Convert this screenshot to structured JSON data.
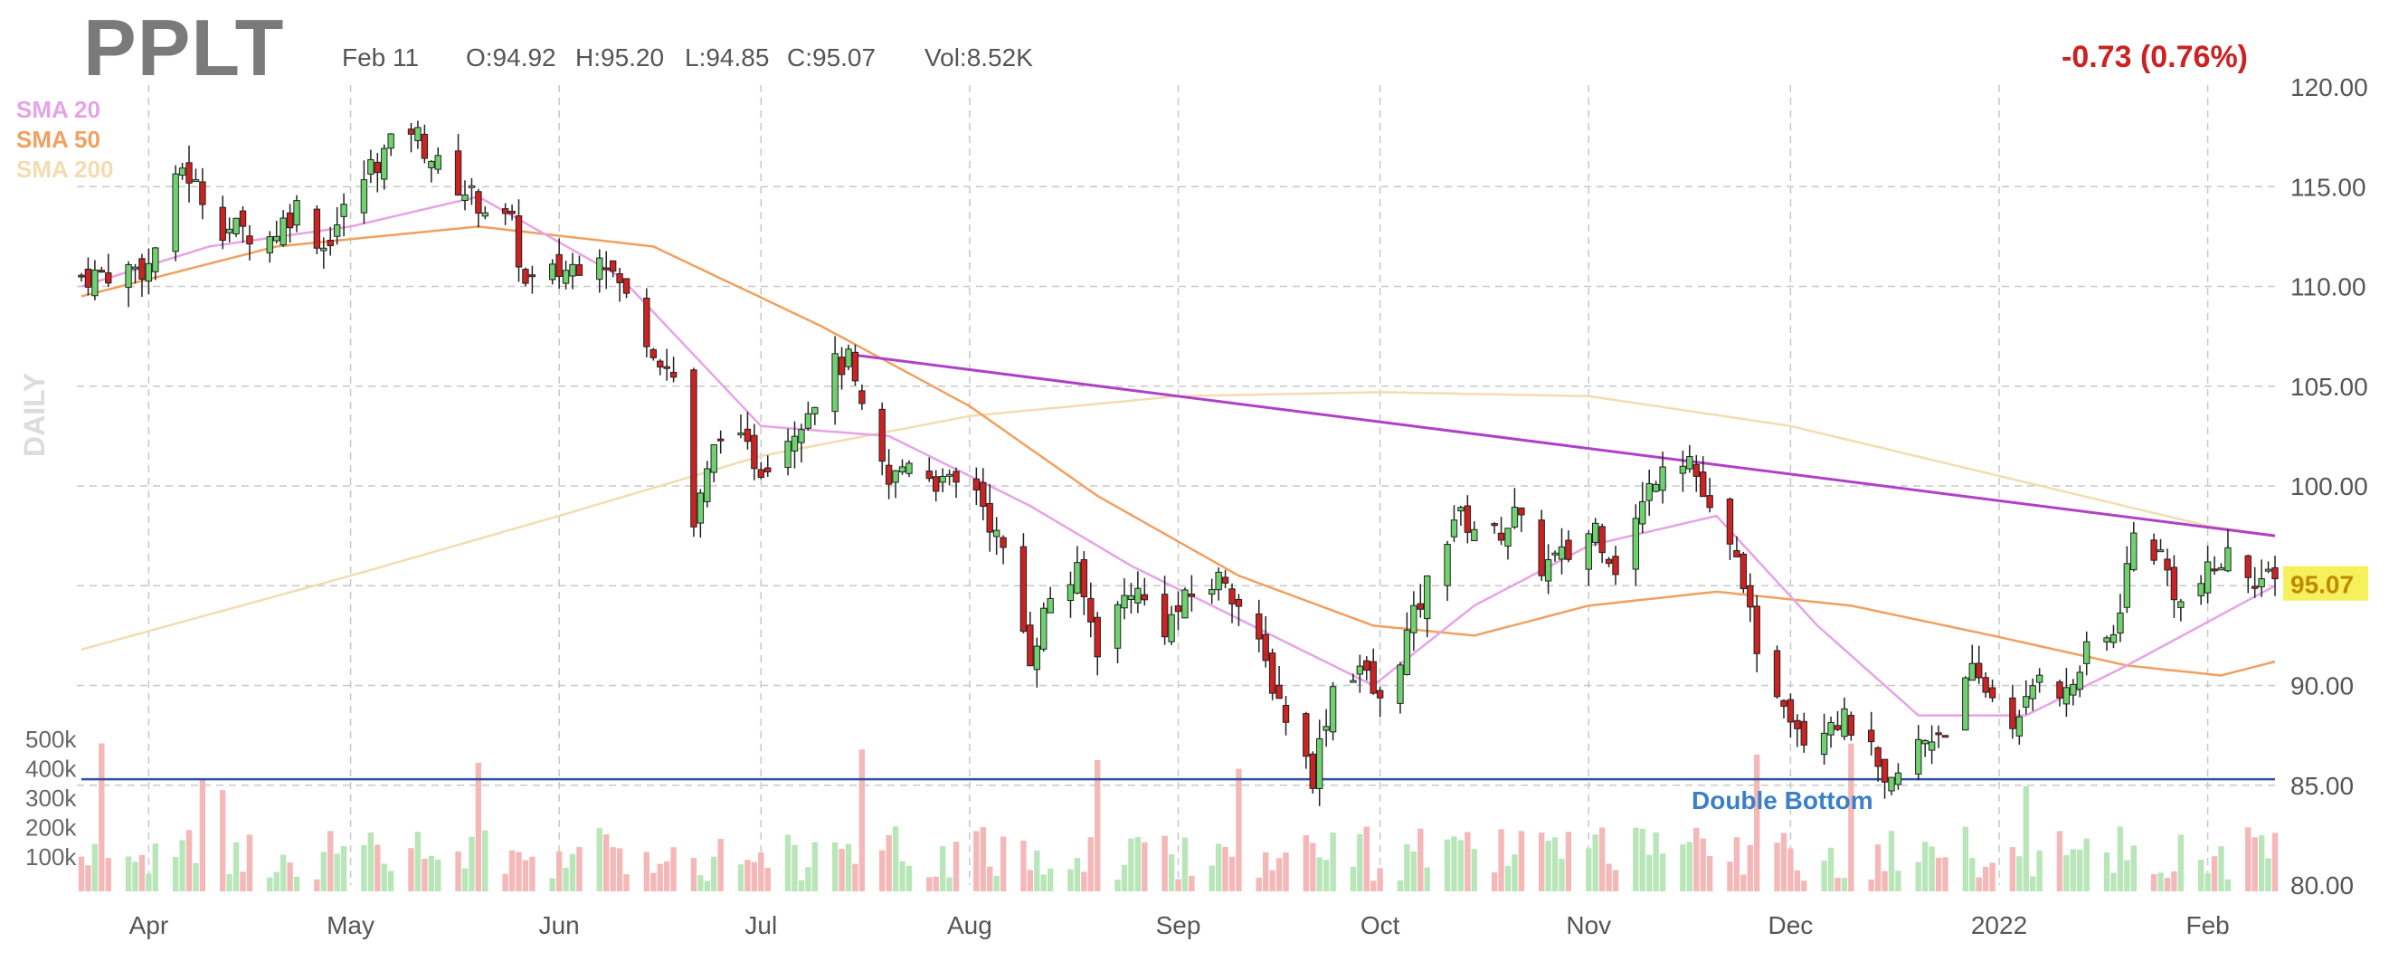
{
  "header": {
    "ticker": "PPLT",
    "date": "Feb 11",
    "open": "O:94.92",
    "high": "H:95.20",
    "low": "L:94.85",
    "close": "C:95.07",
    "volume": "Vol:8.52K",
    "change": "-0.73 (0.76%)",
    "timeframe": "DAILY"
  },
  "colors": {
    "up": "#6fd26f",
    "down": "#cc2222",
    "vol_up": "#b9e6b9",
    "vol_down": "#f4b8b8",
    "sma20": "#e6a3e6",
    "sma50": "#f0a060",
    "sma200": "#f3dcb0",
    "trendline": "#b040c8",
    "support": "#3050a0",
    "annotation": "#3a7fc8",
    "last_price_bg": "#f6f05a",
    "last_price_text": "#c08a00",
    "grid": "#c8c8c8"
  },
  "chart_data": {
    "type": "candlestick",
    "title": "PPLT",
    "timeframe": "DAILY",
    "ylim": [
      80,
      120
    ],
    "y_ticks": [
      "120.00",
      "115.00",
      "110.00",
      "105.00",
      "100.00",
      "95.00",
      "90.00",
      "85.00",
      "80.00"
    ],
    "x_tick_labels": [
      "Apr",
      "May",
      "Jun",
      "Jul",
      "Aug",
      "Sep",
      "Oct",
      "Nov",
      "Dec",
      "2022",
      "Feb"
    ],
    "volume_ticks": [
      "500k",
      "400k",
      "300k",
      "200k",
      "100k"
    ],
    "legend": [
      "SMA 20",
      "SMA 50",
      "SMA 200"
    ],
    "last_price": "95.07",
    "annotation": "Double Bottom",
    "support_level": 85.3,
    "trendline": {
      "from": [
        "Jul 14",
        106.6
      ],
      "to": [
        "Feb 11",
        97.5
      ]
    },
    "anchors": [
      [
        "Mar 22",
        110.5
      ],
      [
        "Apr 1",
        111
      ],
      [
        "Apr 6",
        116
      ],
      [
        "Apr 12",
        113
      ],
      [
        "Apr 19",
        112.5
      ],
      [
        "Apr 23",
        114
      ],
      [
        "Apr 27",
        112
      ],
      [
        "May 4",
        116
      ],
      [
        "May 10",
        118
      ],
      [
        "May 14",
        116
      ],
      [
        "May 19",
        114.5
      ],
      [
        "May 25",
        113
      ],
      [
        "May 27",
        110
      ],
      [
        "Jun 3",
        111
      ],
      [
        "Jun 7",
        112
      ],
      [
        "Jun 10",
        110
      ],
      [
        "Jun 15",
        107
      ],
      [
        "Jun 18",
        105.5
      ],
      [
        "Jun 21",
        98
      ],
      [
        "Jun 25",
        103
      ],
      [
        "Jul 1",
        101
      ],
      [
        "Jul 6",
        103
      ],
      [
        "Jul 12",
        106
      ],
      [
        "Jul 14",
        106.2
      ],
      [
        "Jul 16",
        103.5
      ],
      [
        "Jul 20",
        100
      ],
      [
        "Jul 23",
        101.5
      ],
      [
        "Jul 28",
        100
      ],
      [
        "Aug 2",
        100
      ],
      [
        "Aug 6",
        96.5
      ],
      [
        "Aug 10",
        91.5
      ],
      [
        "Aug 13",
        94.5
      ],
      [
        "Aug 17",
        95.5
      ],
      [
        "Aug 20",
        92
      ],
      [
        "Aug 25",
        95
      ],
      [
        "Aug 30",
        93
      ],
      [
        "Sep 3",
        94.5
      ],
      [
        "Sep 8",
        95.5
      ],
      [
        "Sep 10",
        94
      ],
      [
        "Sep 14",
        91
      ],
      [
        "Sep 17",
        88.5
      ],
      [
        "Sep 21",
        85.5
      ],
      [
        "Sep 24",
        90
      ],
      [
        "Sep 28",
        91
      ],
      [
        "Oct 1",
        89
      ],
      [
        "Oct 5",
        92.5
      ],
      [
        "Oct 8",
        95
      ],
      [
        "Oct 12",
        98.5
      ],
      [
        "Oct 18",
        97.5
      ],
      [
        "Oct 21",
        98.5
      ],
      [
        "Oct 25",
        96
      ],
      [
        "Oct 29",
        96.5
      ],
      [
        "Nov 2",
        98
      ],
      [
        "Nov 5",
        96
      ],
      [
        "Nov 9",
        99
      ],
      [
        "Nov 12",
        101.5
      ],
      [
        "Nov 16",
        101.5
      ],
      [
        "Nov 19",
        98.5
      ],
      [
        "Nov 24",
        95.5
      ],
      [
        "Nov 26",
        91
      ],
      [
        "Nov 30",
        89.5
      ],
      [
        "Dec 3",
        87.5
      ],
      [
        "Dec 7",
        88.5
      ],
      [
        "Dec 10",
        88
      ],
      [
        "Dec 13",
        86.5
      ],
      [
        "Dec 15",
        84.5
      ],
      [
        "Dec 20",
        87
      ],
      [
        "Dec 24",
        88
      ],
      [
        "Dec 28",
        90.5
      ],
      [
        "Dec 31",
        89.5
      ],
      [
        "Jan 4",
        88
      ],
      [
        "Jan 7",
        91
      ],
      [
        "Jan 11",
        89.5
      ],
      [
        "Jan 14",
        91.5
      ],
      [
        "Jan 18",
        92.5
      ],
      [
        "Jan 21",
        97.5
      ],
      [
        "Jan 25",
        96.5
      ],
      [
        "Jan 28",
        94
      ],
      [
        "Feb 1",
        95.5
      ],
      [
        "Feb 4",
        96.5
      ],
      [
        "Feb 8",
        95.5
      ],
      [
        "Feb 11",
        95.07
      ]
    ],
    "sma20_anchors": [
      [
        "Mar 22",
        110
      ],
      [
        "Apr 10",
        112
      ],
      [
        "May 1",
        113
      ],
      [
        "May 20",
        114.5
      ],
      [
        "Jun 10",
        110.5
      ],
      [
        "Jul 1",
        103
      ],
      [
        "Jul 20",
        102.5
      ],
      [
        "Aug 10",
        99
      ],
      [
        "Aug 25",
        96
      ],
      [
        "Sep 15",
        92.5
      ],
      [
        "Sep 30",
        90
      ],
      [
        "Oct 15",
        94
      ],
      [
        "Nov 1",
        97
      ],
      [
        "Nov 20",
        98.5
      ],
      [
        "Dec 5",
        93
      ],
      [
        "Dec 20",
        88.5
      ],
      [
        "Jan 5",
        88.5
      ],
      [
        "Jan 20",
        91
      ],
      [
        "Feb 11",
        95
      ]
    ],
    "sma50_anchors": [
      [
        "Mar 22",
        109.5
      ],
      [
        "Apr 20",
        112
      ],
      [
        "May 20",
        113
      ],
      [
        "Jun 15",
        112
      ],
      [
        "Jul 10",
        108
      ],
      [
        "Aug 1",
        104
      ],
      [
        "Aug 20",
        99.5
      ],
      [
        "Sep 10",
        95.5
      ],
      [
        "Sep 30",
        93
      ],
      [
        "Oct 15",
        92.5
      ],
      [
        "Nov 1",
        94
      ],
      [
        "Nov 20",
        94.7
      ],
      [
        "Dec 10",
        94
      ],
      [
        "Dec 31",
        92.5
      ],
      [
        "Jan 20",
        91
      ],
      [
        "Feb 3",
        90.5
      ],
      [
        "Feb 11",
        91.2
      ]
    ],
    "sma200_anchors": [
      [
        "Mar 22",
        91.8
      ],
      [
        "May 1",
        95.5
      ],
      [
        "Jun 1",
        98.5
      ],
      [
        "Jul 1",
        101.5
      ],
      [
        "Aug 1",
        103.5
      ],
      [
        "Sep 1",
        104.5
      ],
      [
        "Oct 1",
        104.7
      ],
      [
        "Nov 1",
        104.5
      ],
      [
        "Dec 1",
        103
      ],
      [
        "Jan 1",
        100.5
      ],
      [
        "Feb 1",
        98
      ],
      [
        "Feb 11",
        97.5
      ]
    ]
  }
}
